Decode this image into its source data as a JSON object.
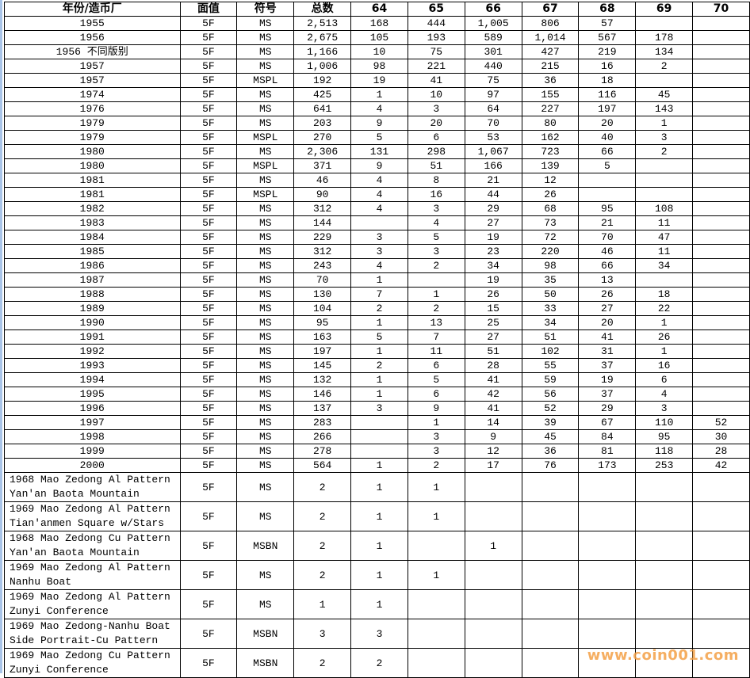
{
  "headers": [
    "年份/造币厂",
    "面值",
    "符号",
    "总数",
    "64",
    "65",
    "66",
    "67",
    "68",
    "69",
    "70"
  ],
  "rows": [
    [
      "1955",
      "5F",
      "MS",
      "2,513",
      "168",
      "444",
      "1,005",
      "806",
      "57",
      "",
      ""
    ],
    [
      "1956",
      "5F",
      "MS",
      "2,675",
      "105",
      "193",
      "589",
      "1,014",
      "567",
      "178",
      ""
    ],
    [
      "1956 不同版别",
      "5F",
      "MS",
      "1,166",
      "10",
      "75",
      "301",
      "427",
      "219",
      "134",
      ""
    ],
    [
      "1957",
      "5F",
      "MS",
      "1,006",
      "98",
      "221",
      "440",
      "215",
      "16",
      "2",
      ""
    ],
    [
      "1957",
      "5F",
      "MSPL",
      "192",
      "19",
      "41",
      "75",
      "36",
      "18",
      "",
      ""
    ],
    [
      "1974",
      "5F",
      "MS",
      "425",
      "1",
      "10",
      "97",
      "155",
      "116",
      "45",
      ""
    ],
    [
      "1976",
      "5F",
      "MS",
      "641",
      "4",
      "3",
      "64",
      "227",
      "197",
      "143",
      ""
    ],
    [
      "1979",
      "5F",
      "MS",
      "203",
      "9",
      "20",
      "70",
      "80",
      "20",
      "1",
      ""
    ],
    [
      "1979",
      "5F",
      "MSPL",
      "270",
      "5",
      "6",
      "53",
      "162",
      "40",
      "3",
      ""
    ],
    [
      "1980",
      "5F",
      "MS",
      "2,306",
      "131",
      "298",
      "1,067",
      "723",
      "66",
      "2",
      ""
    ],
    [
      "1980",
      "5F",
      "MSPL",
      "371",
      "9",
      "51",
      "166",
      "139",
      "5",
      "",
      ""
    ],
    [
      "1981",
      "5F",
      "MS",
      "46",
      "4",
      "8",
      "21",
      "12",
      "",
      "",
      ""
    ],
    [
      "1981",
      "5F",
      "MSPL",
      "90",
      "4",
      "16",
      "44",
      "26",
      "",
      "",
      ""
    ],
    [
      "1982",
      "5F",
      "MS",
      "312",
      "4",
      "3",
      "29",
      "68",
      "95",
      "108",
      ""
    ],
    [
      "1983",
      "5F",
      "MS",
      "144",
      "",
      "4",
      "27",
      "73",
      "21",
      "11",
      ""
    ],
    [
      "1984",
      "5F",
      "MS",
      "229",
      "3",
      "5",
      "19",
      "72",
      "70",
      "47",
      ""
    ],
    [
      "1985",
      "5F",
      "MS",
      "312",
      "3",
      "3",
      "23",
      "220",
      "46",
      "11",
      ""
    ],
    [
      "1986",
      "5F",
      "MS",
      "243",
      "4",
      "2",
      "34",
      "98",
      "66",
      "34",
      ""
    ],
    [
      "1987",
      "5F",
      "MS",
      "70",
      "1",
      "",
      "19",
      "35",
      "13",
      "",
      ""
    ],
    [
      "1988",
      "5F",
      "MS",
      "130",
      "7",
      "1",
      "26",
      "50",
      "26",
      "18",
      ""
    ],
    [
      "1989",
      "5F",
      "MS",
      "104",
      "2",
      "2",
      "15",
      "33",
      "27",
      "22",
      ""
    ],
    [
      "1990",
      "5F",
      "MS",
      "95",
      "1",
      "13",
      "25",
      "34",
      "20",
      "1",
      ""
    ],
    [
      "1991",
      "5F",
      "MS",
      "163",
      "5",
      "7",
      "27",
      "51",
      "41",
      "26",
      ""
    ],
    [
      "1992",
      "5F",
      "MS",
      "197",
      "1",
      "11",
      "51",
      "102",
      "31",
      "1",
      ""
    ],
    [
      "1993",
      "5F",
      "MS",
      "145",
      "2",
      "6",
      "28",
      "55",
      "37",
      "16",
      ""
    ],
    [
      "1994",
      "5F",
      "MS",
      "132",
      "1",
      "5",
      "41",
      "59",
      "19",
      "6",
      ""
    ],
    [
      "1995",
      "5F",
      "MS",
      "146",
      "1",
      "6",
      "42",
      "56",
      "37",
      "4",
      ""
    ],
    [
      "1996",
      "5F",
      "MS",
      "137",
      "3",
      "9",
      "41",
      "52",
      "29",
      "3",
      ""
    ],
    [
      "1997",
      "5F",
      "MS",
      "283",
      "",
      "1",
      "14",
      "39",
      "67",
      "110",
      "52"
    ],
    [
      "1998",
      "5F",
      "MS",
      "266",
      "",
      "3",
      "9",
      "45",
      "84",
      "95",
      "30"
    ],
    [
      "1999",
      "5F",
      "MS",
      "278",
      "",
      "3",
      "12",
      "36",
      "81",
      "118",
      "28"
    ],
    [
      "2000",
      "5F",
      "MS",
      "564",
      "1",
      "2",
      "17",
      "76",
      "173",
      "253",
      "42"
    ],
    [
      "1968 Mao Zedong Al Pattern Yan'an Baota Mountain",
      "5F",
      "MS",
      "2",
      "1",
      "1",
      "",
      "",
      "",
      "",
      ""
    ],
    [
      "1969 Mao Zedong Al Pattern Tian'anmen Square w/Stars",
      "5F",
      "MS",
      "2",
      "1",
      "1",
      "",
      "",
      "",
      "",
      ""
    ],
    [
      "1968 Mao Zedong Cu Pattern Yan'an Baota Mountain",
      "5F",
      "MSBN",
      "2",
      "1",
      "",
      "1",
      "",
      "",
      "",
      ""
    ],
    [
      "1969 Mao Zedong Al Pattern Nanhu Boat",
      "5F",
      "MS",
      "2",
      "1",
      "1",
      "",
      "",
      "",
      "",
      ""
    ],
    [
      "1969 Mao Zedong Al Pattern Zunyi Conference",
      "5F",
      "MS",
      "1",
      "1",
      "",
      "",
      "",
      "",
      "",
      ""
    ],
    [
      "1969 Mao Zedong-Nanhu Boat Side Portrait-Cu Pattern",
      "5F",
      "MSBN",
      "3",
      "3",
      "",
      "",
      "",
      "",
      "",
      ""
    ],
    [
      "1969 Mao Zedong Cu Pattern Zunyi Conference",
      "5F",
      "MSBN",
      "2",
      "2",
      "",
      "",
      "",
      "",
      "",
      ""
    ]
  ],
  "watermark": "www.coin001.com"
}
